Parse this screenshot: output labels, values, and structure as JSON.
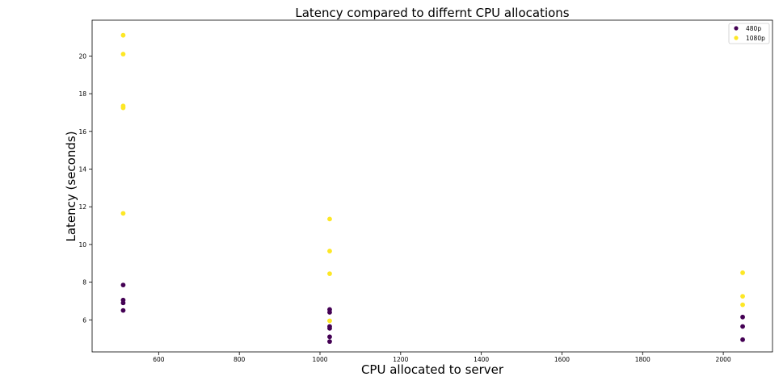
{
  "chart_data": {
    "type": "scatter",
    "title": "Latency compared to differnt CPU allocations",
    "xlabel": "CPU allocated to server",
    "ylabel": "Latency (seconds)",
    "xlim": [
      435,
      2122
    ],
    "ylim": [
      4.3,
      21.9
    ],
    "xticks": [
      600,
      800,
      1000,
      1200,
      1400,
      1600,
      1800,
      2000
    ],
    "yticks": [
      6,
      8,
      10,
      12,
      14,
      16,
      18,
      20
    ],
    "grid": false,
    "legend_position": "top-right",
    "series": [
      {
        "name": "480p",
        "color": "#440154",
        "points": [
          [
            512,
            7.85
          ],
          [
            512,
            7.05
          ],
          [
            512,
            6.9
          ],
          [
            512,
            6.5
          ],
          [
            1024,
            6.55
          ],
          [
            1024,
            6.4
          ],
          [
            1024,
            5.65
          ],
          [
            1024,
            5.55
          ],
          [
            1024,
            5.1
          ],
          [
            1024,
            4.85
          ],
          [
            2048,
            6.15
          ],
          [
            2048,
            5.65
          ],
          [
            2048,
            4.95
          ]
        ]
      },
      {
        "name": "1080p",
        "color": "#fde725",
        "points": [
          [
            512,
            21.1
          ],
          [
            512,
            20.1
          ],
          [
            512,
            17.35
          ],
          [
            512,
            17.25
          ],
          [
            512,
            11.65
          ],
          [
            1024,
            11.35
          ],
          [
            1024,
            9.65
          ],
          [
            1024,
            8.45
          ],
          [
            1024,
            5.95
          ],
          [
            2048,
            8.5
          ],
          [
            2048,
            7.25
          ],
          [
            2048,
            6.8
          ]
        ]
      }
    ]
  }
}
